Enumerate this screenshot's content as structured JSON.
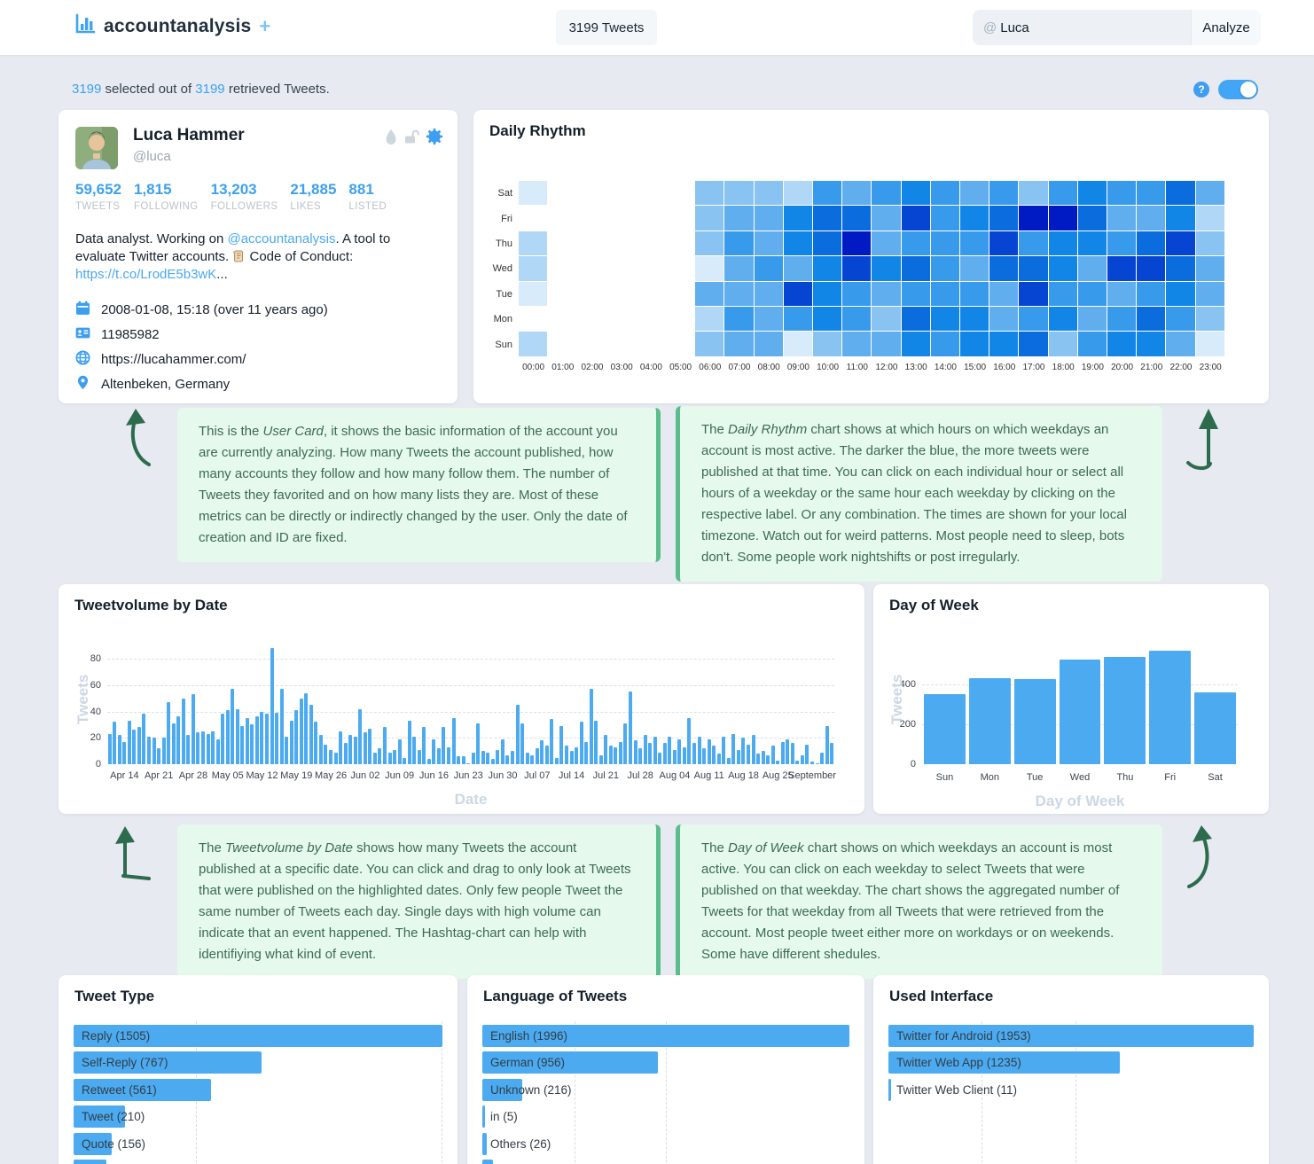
{
  "colors": {
    "accent_blue": "#42a5f5",
    "bar_blue": "#4cabf0",
    "stat_blue": "#3da1ef",
    "callout_bg": "#e5f9ec",
    "callout_accent": "#5bbd8b",
    "callout_text": "#3d6a57",
    "page_bg": "#e7eaf1"
  },
  "header": {
    "app_name": "accountanalysis",
    "add_label": "+",
    "tweets_button": "3199 Tweets",
    "search_prefix": "@",
    "search_value": "Luca",
    "analyze_label": "Analyze",
    "help_label": "?"
  },
  "status": {
    "selected": "3199",
    "middle": " selected out of ",
    "retrieved": "3199",
    "suffix": " retrieved Tweets."
  },
  "user_card": {
    "name": "Luca Hammer",
    "handle": "@luca",
    "stats": [
      {
        "value": "59,652",
        "label": "TWEETS"
      },
      {
        "value": "1,815",
        "label": "FOLLOWING"
      },
      {
        "value": "13,203",
        "label": "FOLLOWERS"
      },
      {
        "value": "21,885",
        "label": "LIKES"
      },
      {
        "value": "881",
        "label": "LISTED"
      }
    ],
    "bio_part1": "Data analyst. Working on ",
    "bio_mention": "@accountanalysis",
    "bio_part2a": ". A tool to evaluate Twitter accounts. ",
    "bio_part2b": " Code of Conduct: ",
    "bio_link": "https://t.co/LrodE5b3wK",
    "bio_ellipsis": "...",
    "created": "2008-01-08, 15:18 (over 11 years ago)",
    "user_id": "11985982",
    "website": "https://lucahammer.com/",
    "location": "Altenbeken, Germany"
  },
  "callouts": [
    {
      "pre": "This is the ",
      "italic": "User Card",
      "rest": ", it shows the basic information of the account you are currently analyzing. How many Tweets the account published, how many accounts they follow and how many follow them. The number of Tweets they favorited and on how many lists they are. Most of these metrics can be directly or indirectly changed by the user. Only the date of creation and ID are fixed."
    },
    {
      "pre": "The ",
      "italic": "Daily Rhythm",
      "rest": " chart shows at which hours on which weekdays an account is most active. The darker the blue, the more tweets were published at that time. You can click on each individual hour or select all hours of a weekday or the same hour each weekday by clicking on the respective label. Or any combination. The times are shown for your local timezone. Watch out for weird patterns. Most people need to sleep, bots don't. Some people work nightshifts or post irregularly."
    },
    {
      "pre": "The ",
      "italic": "Tweetvolume by Date",
      "rest": " shows how many Tweets the account published at a specific date. You can click and drag to only look at Tweets that were published on the highlighted dates. Only few people Tweet the same number of Tweets each day. Single days with high volume can indicate that an event happened. The Hashtag-chart can help with identifiying what kind of event."
    },
    {
      "pre": "The ",
      "italic": "Day of Week",
      "rest": " chart shows on which weekdays an account is most active. You can click on each weekday to select Tweets that were published on that weekday. The chart shows the aggregated number of Tweets for that weekday from all Tweets that were retrieved from the account. Most people tweet either more on workdays or on weekends. Some have different shedules."
    }
  ],
  "chart_data": [
    {
      "id": "daily_rhythm",
      "type": "heatmap",
      "title": "Daily Rhythm",
      "rows": [
        "Sat",
        "Fri",
        "Thu",
        "Wed",
        "Tue",
        "Mon",
        "Sun"
      ],
      "cols": [
        "00:00",
        "01:00",
        "02:00",
        "03:00",
        "04:00",
        "05:00",
        "06:00",
        "07:00",
        "08:00",
        "09:00",
        "10:00",
        "11:00",
        "12:00",
        "13:00",
        "14:00",
        "15:00",
        "16:00",
        "17:00",
        "18:00",
        "19:00",
        "20:00",
        "21:00",
        "22:00",
        "23:00"
      ],
      "note": "relative tweet intensity 0 (none) to 9 (most)",
      "values": [
        [
          1,
          0,
          0,
          0,
          0,
          0,
          3,
          3,
          3,
          2,
          5,
          4,
          5,
          6,
          5,
          4,
          5,
          3,
          5,
          6,
          5,
          5,
          7,
          4
        ],
        [
          0,
          0,
          0,
          0,
          0,
          0,
          3,
          4,
          4,
          6,
          7,
          7,
          4,
          8,
          5,
          6,
          7,
          9,
          9,
          7,
          4,
          4,
          6,
          2
        ],
        [
          2,
          0,
          0,
          0,
          0,
          0,
          3,
          5,
          4,
          6,
          7,
          9,
          4,
          5,
          5,
          5,
          8,
          5,
          6,
          6,
          5,
          7,
          8,
          3
        ],
        [
          2,
          0,
          0,
          0,
          0,
          0,
          1,
          4,
          5,
          4,
          6,
          8,
          6,
          7,
          5,
          4,
          7,
          7,
          6,
          4,
          8,
          8,
          7,
          4
        ],
        [
          1,
          0,
          0,
          0,
          0,
          0,
          4,
          4,
          4,
          8,
          6,
          5,
          4,
          5,
          5,
          5,
          4,
          8,
          5,
          5,
          4,
          5,
          6,
          4
        ],
        [
          0,
          0,
          0,
          0,
          0,
          0,
          2,
          5,
          4,
          5,
          6,
          5,
          3,
          7,
          6,
          6,
          4,
          5,
          6,
          4,
          5,
          7,
          5,
          3
        ],
        [
          2,
          0,
          0,
          0,
          0,
          0,
          3,
          4,
          4,
          1,
          3,
          4,
          4,
          6,
          5,
          6,
          6,
          7,
          3,
          5,
          6,
          6,
          4,
          1
        ]
      ],
      "palette": [
        "transparent",
        "#d8ebfa",
        "#b0d7f6",
        "#88c3f2",
        "#60aeee",
        "#389aea",
        "#1286e6",
        "#0a6cdd",
        "#0545d2",
        "#001bc4"
      ]
    },
    {
      "id": "tweetvolume_by_date",
      "type": "bar",
      "title": "Tweetvolume by Date",
      "xlabel": "Date",
      "ylabel": "Tweets",
      "yticks": [
        0,
        20,
        40,
        60,
        80
      ],
      "ylim": [
        0,
        99
      ],
      "values": [
        23,
        32,
        22,
        17,
        33,
        26,
        28,
        38,
        21,
        20,
        12,
        20,
        47,
        31,
        36,
        50,
        22,
        53,
        24,
        25,
        23,
        25,
        19,
        38,
        41,
        57,
        42,
        29,
        35,
        30,
        36,
        40,
        38,
        88,
        39,
        57,
        21,
        33,
        41,
        50,
        54,
        45,
        32,
        22,
        15,
        11,
        9,
        25,
        16,
        22,
        21,
        42,
        24,
        27,
        9,
        12,
        28,
        9,
        11,
        19,
        5,
        33,
        21,
        11,
        28,
        4,
        19,
        12,
        28,
        13,
        35,
        6,
        6,
        1,
        9,
        31,
        10,
        9,
        4,
        11,
        19,
        7,
        10,
        45,
        31,
        9,
        7,
        12,
        18,
        14,
        34,
        5,
        29,
        14,
        10,
        13,
        32,
        17,
        57,
        33,
        7,
        22,
        14,
        13,
        17,
        31,
        55,
        18,
        12,
        22,
        16,
        21,
        9,
        16,
        21,
        11,
        19,
        13,
        35,
        16,
        21,
        12,
        19,
        14,
        8,
        21,
        5,
        23,
        11,
        20,
        15,
        22,
        8,
        10,
        7,
        14,
        3,
        17,
        19,
        16,
        3,
        7,
        15,
        2,
        1,
        9,
        29,
        16
      ],
      "tick_positions": [
        3,
        10,
        17,
        24,
        31,
        38,
        45,
        52,
        59,
        66,
        73,
        80,
        87,
        94,
        101,
        108,
        115,
        122,
        129,
        136,
        143
      ],
      "tick_labels": [
        "Apr 14",
        "Apr 21",
        "Apr 28",
        "May 05",
        "May 12",
        "May 19",
        "May 26",
        "Jun 02",
        "Jun 09",
        "Jun 16",
        "Jun 23",
        "Jun 30",
        "Jul 07",
        "Jul 14",
        "Jul 21",
        "Jul 28",
        "Aug 04",
        "Aug 11",
        "Aug 18",
        "Aug 25",
        "September"
      ]
    },
    {
      "id": "day_of_week",
      "type": "bar",
      "title": "Day of Week",
      "xlabel": "Day of Week",
      "ylabel": "Tweets",
      "categories": [
        "Sun",
        "Mon",
        "Tue",
        "Wed",
        "Thu",
        "Fri",
        "Sat"
      ],
      "values": [
        350,
        430,
        425,
        525,
        540,
        570,
        360
      ],
      "yticks": [
        0,
        200,
        400
      ],
      "ylim": [
        0,
        645
      ]
    },
    {
      "id": "tweet_type",
      "type": "bar_h",
      "title": "Tweet Type",
      "items": [
        {
          "label": "Reply (1505)",
          "value": 1505
        },
        {
          "label": "Self-Reply (767)",
          "value": 767
        },
        {
          "label": "Retweet (561)",
          "value": 561
        },
        {
          "label": "Tweet (210)",
          "value": 210
        },
        {
          "label": "Quote (156)",
          "value": 156
        }
      ],
      "xmax": 1505,
      "gridlines": [
        500,
        1500
      ],
      "partial_bar_fraction": 0.088
    },
    {
      "id": "language_of_tweets",
      "type": "bar_h",
      "title": "Language of Tweets",
      "items": [
        {
          "label": "English (1996)",
          "value": 1996
        },
        {
          "label": "German (956)",
          "value": 956
        },
        {
          "label": "Unknown (216)",
          "value": 216
        },
        {
          "label": "in (5)",
          "value": 5
        },
        {
          "label": "Others (26)",
          "value": 26
        }
      ],
      "xmax": 1996,
      "gridlines": [
        500,
        1000
      ],
      "partial_bar_fraction": 0.028
    },
    {
      "id": "used_interface",
      "type": "bar_h",
      "title": "Used Interface",
      "items": [
        {
          "label": "Twitter for Android (1953)",
          "value": 1953
        },
        {
          "label": "Twitter Web App (1235)",
          "value": 1235
        },
        {
          "label": "Twitter Web Client (11)",
          "value": 11
        }
      ],
      "xmax": 1953,
      "gridlines": [
        500,
        1000
      ],
      "partial_bar_fraction": 0
    }
  ]
}
